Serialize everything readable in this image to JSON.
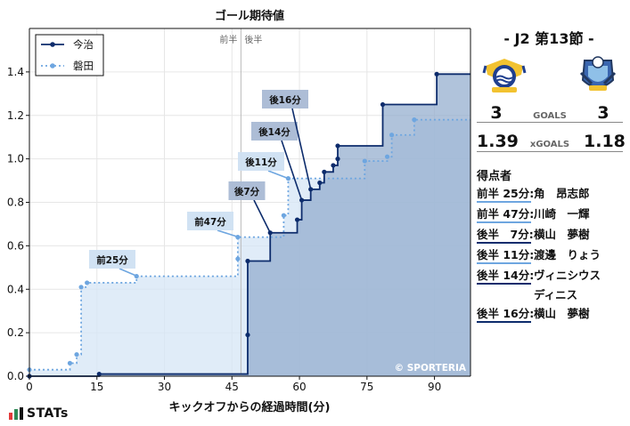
{
  "chart_data": {
    "type": "line",
    "step": true,
    "title": "ゴール期待値",
    "xlabel": "キックオフからの経過時間(分)",
    "ylabel": "",
    "xlim": [
      0,
      98
    ],
    "ylim": [
      0,
      1.6
    ],
    "xticks": [
      "0",
      "15",
      "30",
      "45",
      "60",
      "75",
      "90"
    ],
    "xtick_values": [
      0,
      15,
      30,
      45,
      60,
      75,
      90
    ],
    "yticks": [
      "0.0",
      "0.2",
      "0.4",
      "0.6",
      "0.8",
      "1.0",
      "1.2",
      "1.4"
    ],
    "ytick_values": [
      0,
      0.2,
      0.4,
      0.6,
      0.8,
      1.0,
      1.2,
      1.4
    ],
    "halftime": 47,
    "halftime_labels": [
      "前半",
      "後半"
    ],
    "watermark": "© SPORTERIA",
    "legend": "top-left",
    "grid": true,
    "series": [
      {
        "name": "今治",
        "color": "#0d2c6c",
        "fill": "#8fa9cc",
        "style": "solid",
        "points": [
          [
            0,
            0.0
          ],
          [
            15.5,
            0.01
          ],
          [
            48.5,
            0.19
          ],
          [
            48.5,
            0.53
          ],
          [
            53.5,
            0.66
          ],
          [
            59.5,
            0.72
          ],
          [
            60.5,
            0.81
          ],
          [
            62.5,
            0.86
          ],
          [
            64.5,
            0.89
          ],
          [
            65.5,
            0.94
          ],
          [
            67.5,
            0.97
          ],
          [
            68.5,
            1.0
          ],
          [
            68.5,
            1.06
          ],
          [
            78.5,
            1.25
          ],
          [
            90.5,
            1.39
          ]
        ]
      },
      {
        "name": "磐田",
        "color": "#6ea6e0",
        "fill": "#d6e6f6",
        "style": "dotted",
        "points": [
          [
            0,
            0.03
          ],
          [
            9,
            0.06
          ],
          [
            10.5,
            0.1
          ],
          [
            11.5,
            0.41
          ],
          [
            12.8,
            0.43
          ],
          [
            23.8,
            0.46
          ],
          [
            46.3,
            0.54
          ],
          [
            46.3,
            0.64
          ],
          [
            56.5,
            0.74
          ],
          [
            57.5,
            0.91
          ],
          [
            74.5,
            0.99
          ],
          [
            79.5,
            1.01
          ],
          [
            80.5,
            1.11
          ],
          [
            85.5,
            1.18
          ]
        ]
      }
    ],
    "annotations": [
      {
        "label": "前25分",
        "x": 24,
        "y": 0.46,
        "team": "磐田"
      },
      {
        "label": "前47分",
        "x": 46.5,
        "y": 0.64,
        "team": "磐田"
      },
      {
        "label": "後7分",
        "x": 53.5,
        "y": 0.66,
        "team": "今治"
      },
      {
        "label": "後11分",
        "x": 57.5,
        "y": 0.91,
        "team": "磐田"
      },
      {
        "label": "後14分",
        "x": 60.5,
        "y": 0.81,
        "team": "今治"
      },
      {
        "label": "後16分",
        "x": 62.5,
        "y": 0.86,
        "team": "今治"
      }
    ]
  },
  "match": {
    "title": "- J2 第13節 -",
    "home_goals": "3",
    "away_goals": "3",
    "goals_label": "GOALS",
    "home_xg": "1.39",
    "away_xg": "1.18",
    "xg_label": "xGOALS"
  },
  "scorers": {
    "title": "得点者",
    "items": [
      {
        "time": "前半 25分:",
        "name": "角　昂志郎",
        "team": "磐田"
      },
      {
        "time": "前半 47分:",
        "name": "川崎　一輝",
        "team": "磐田"
      },
      {
        "time": "後半　7分:",
        "name": "横山　夢樹",
        "team": "今治"
      },
      {
        "time": "後半 11分:",
        "name": "渡邊　りょう",
        "team": "磐田"
      },
      {
        "time": "後半 14分:",
        "name": "ヴィニシウス\nディニス",
        "team": "今治"
      },
      {
        "time": "後半 16分:",
        "name": "横山　夢樹",
        "team": "今治"
      }
    ]
  },
  "colors": {
    "home": "#0d2c6c",
    "away": "#6ea6e0"
  },
  "icons": {
    "home_emblem": "fc-imabari-crest-icon",
    "away_emblem": "jubilo-iwata-crest-icon"
  },
  "branding": {
    "logo_text": "STATs"
  }
}
